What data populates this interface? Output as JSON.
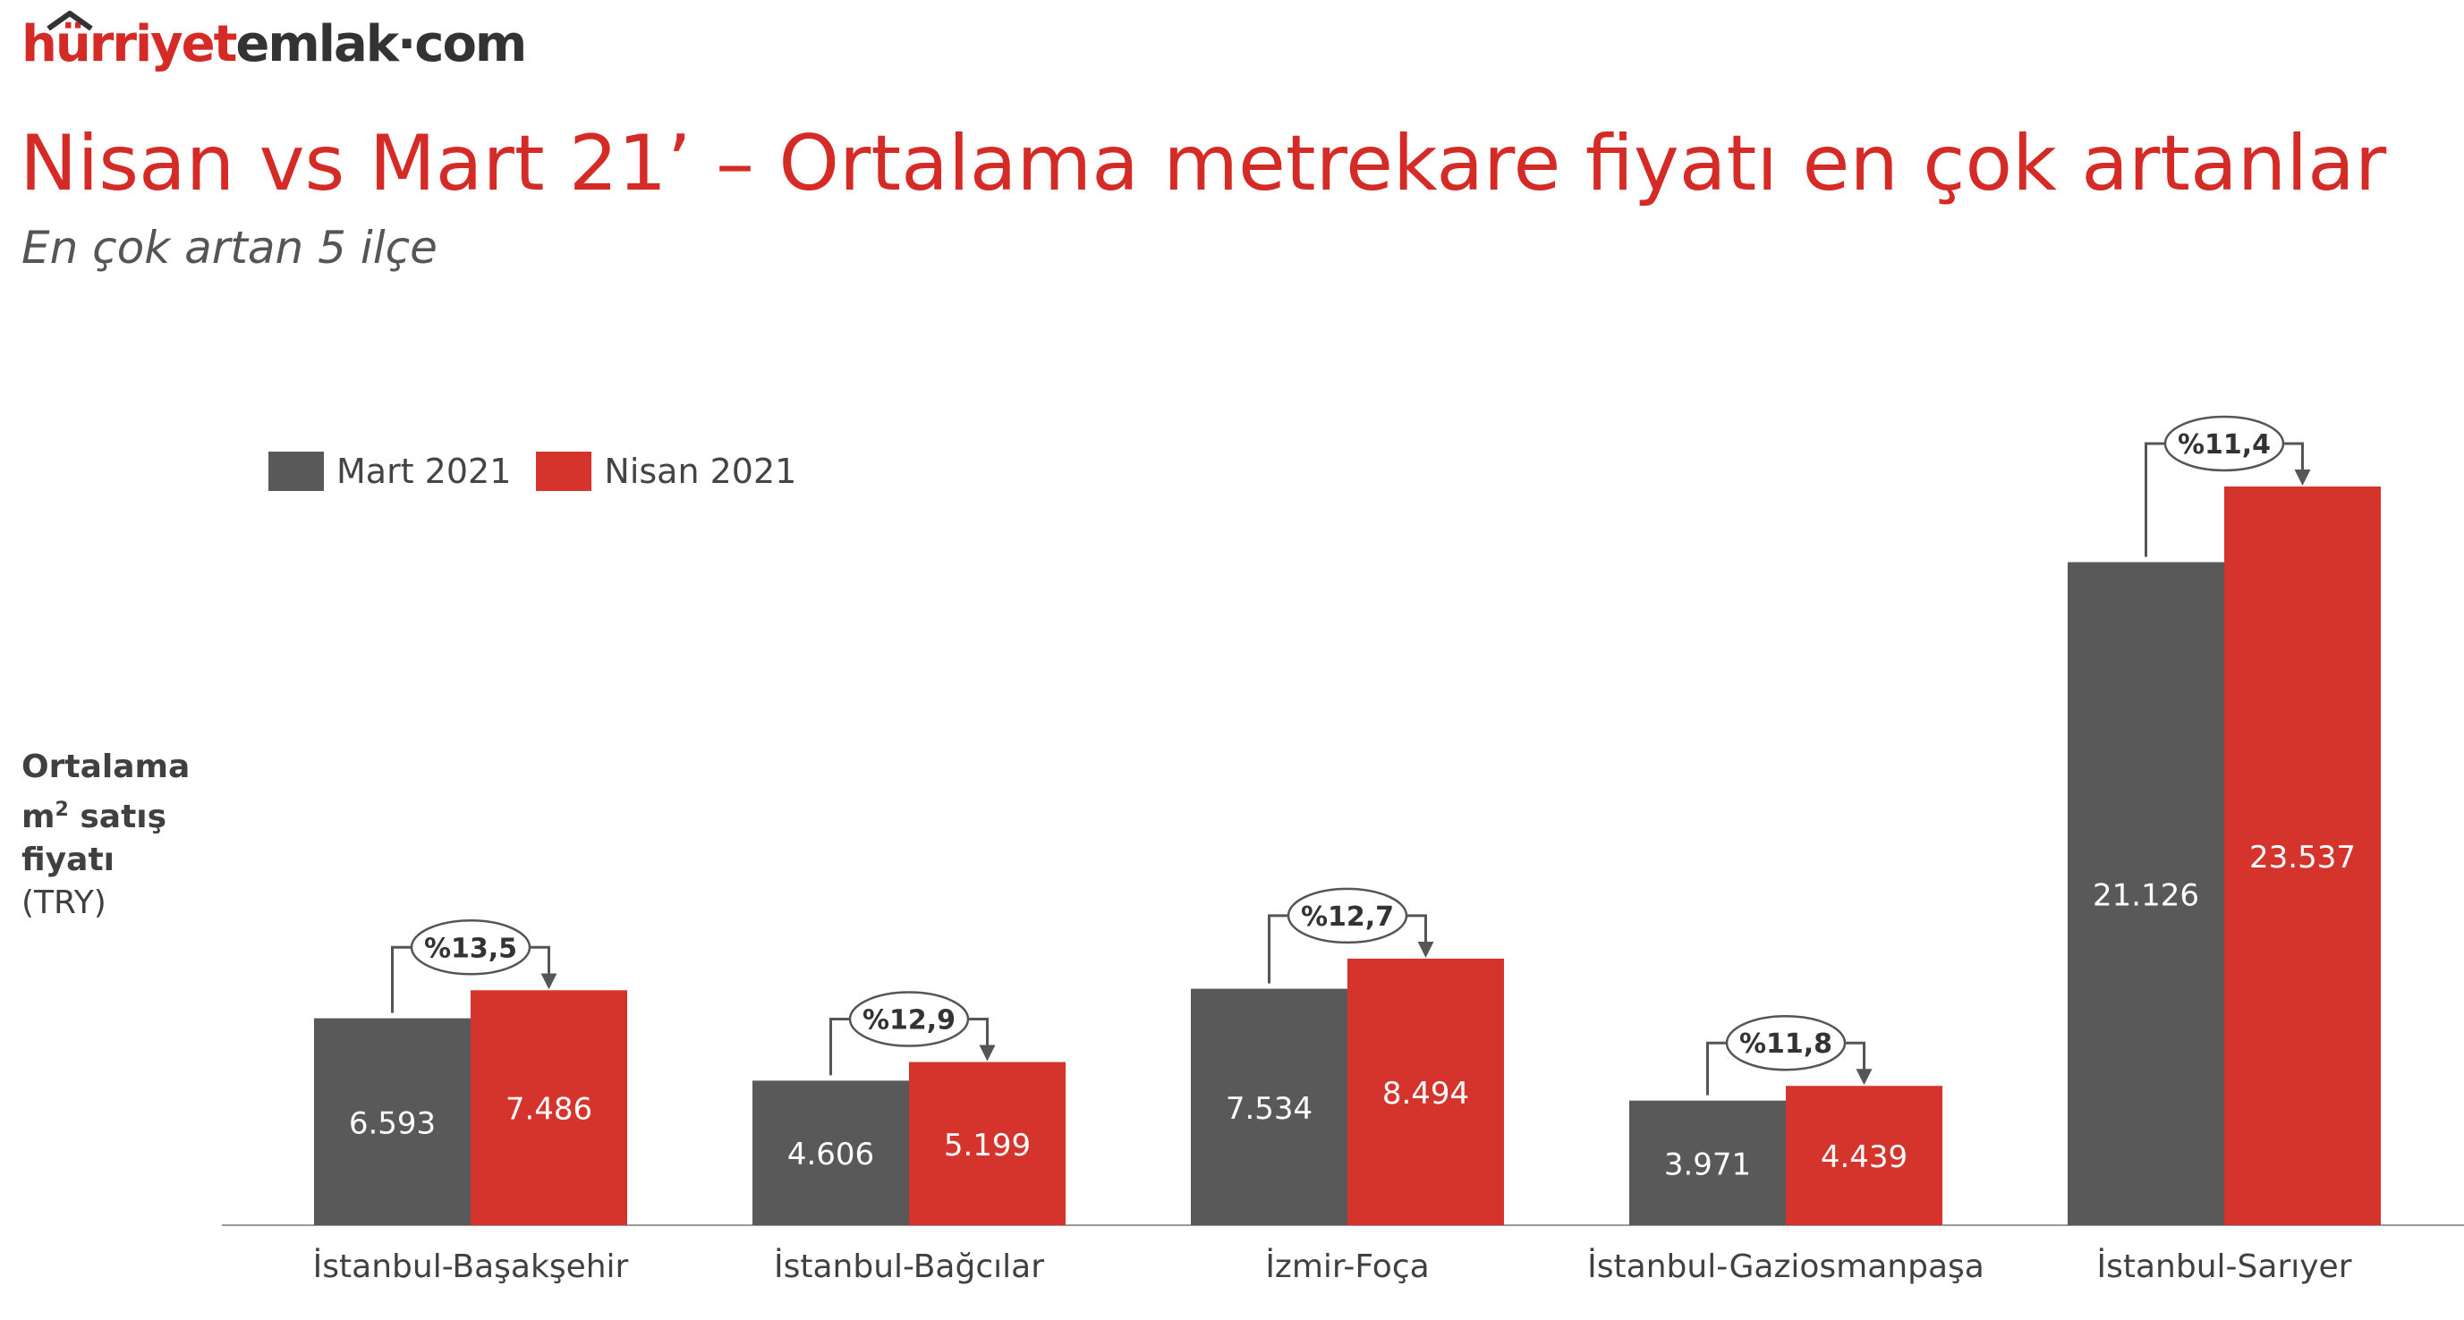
{
  "logo": {
    "part1": "hürriyet",
    "part2": "emlak·com"
  },
  "title": "Nisan vs Mart 21’ – Ortalama metrekare fiyatı en çok artanlar",
  "subtitle": "En çok artan 5 ilçe",
  "y_label": {
    "line1": "Ortalama",
    "line2_base": "m",
    "line2_sup": "2",
    "line2_rest": " satış",
    "line3": "fiyatı",
    "line4": "(TRY)"
  },
  "colors": {
    "mart": "#595959",
    "nisan": "#d4342b",
    "title": "#d52b27"
  },
  "chart_data": {
    "type": "bar",
    "categories": [
      "İstanbul-Başakşehir",
      "İstanbul-Bağcılar",
      "İzmir-Foça",
      "İstanbul-Gaziosmanpaşa",
      "İstanbul-Sarıyer"
    ],
    "series": [
      {
        "name": "Mart 2021",
        "values": [
          6593,
          4606,
          7534,
          3971,
          21126
        ],
        "labels": [
          "6.593",
          "4.606",
          "7.534",
          "3.971",
          "21.126"
        ]
      },
      {
        "name": "Nisan 2021",
        "values": [
          7486,
          5199,
          8494,
          4439,
          23537
        ],
        "labels": [
          "7.486",
          "5.199",
          "8.494",
          "4.439",
          "23.537"
        ]
      }
    ],
    "change_labels": [
      "%13,5",
      "%12,9",
      "%12,7",
      "%11,8",
      "%11,4"
    ],
    "ylim": [
      0,
      26500
    ],
    "grid": false,
    "legend": "top-left"
  }
}
